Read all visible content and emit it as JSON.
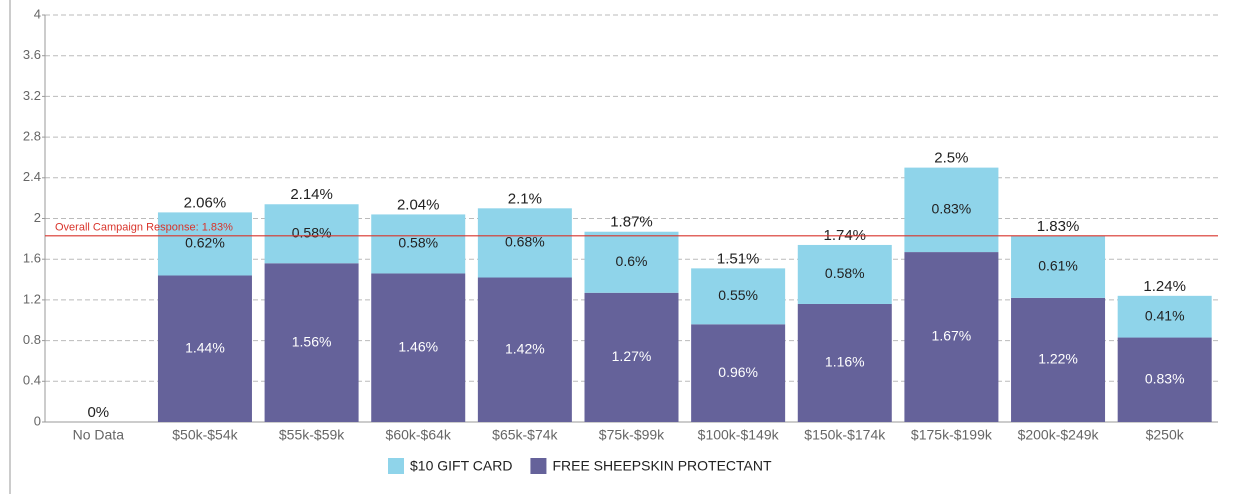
{
  "chart_data": {
    "type": "stacked_bar",
    "categories": [
      "No Data",
      "$50k-$54k",
      "$55k-$59k",
      "$60k-$64k",
      "$65k-$74k",
      "$75k-$99k",
      "$100k-$149k",
      "$150k-$174k",
      "$175k-$199k",
      "$200k-$249k",
      "$250k"
    ],
    "series": [
      {
        "name": "FREE SHEEPSKIN PROTECTANT",
        "color": "#65629a",
        "values": [
          0,
          1.44,
          1.56,
          1.46,
          1.42,
          1.27,
          0.96,
          1.16,
          1.67,
          1.22,
          0.83
        ],
        "value_labels": [
          null,
          "1.44%",
          "1.56%",
          "1.46%",
          "1.42%",
          "1.27%",
          "0.96%",
          "1.16%",
          "1.67%",
          "1.22%",
          "0.83%"
        ]
      },
      {
        "name": "$10 GIFT CARD",
        "color": "#8fd4ea",
        "values": [
          0,
          0.62,
          0.58,
          0.58,
          0.68,
          0.6,
          0.55,
          0.58,
          0.83,
          0.61,
          0.41
        ],
        "value_labels": [
          null,
          "0.62%",
          "0.58%",
          "0.58%",
          "0.68%",
          "0.6%",
          "0.55%",
          "0.58%",
          "0.83%",
          "0.61%",
          "0.41%"
        ]
      }
    ],
    "totals": [
      0,
      2.06,
      2.14,
      2.04,
      2.1,
      1.87,
      1.51,
      1.74,
      2.5,
      1.83,
      1.24
    ],
    "total_labels": [
      "0%",
      "2.06%",
      "2.14%",
      "2.04%",
      "2.1%",
      "1.87%",
      "1.51%",
      "1.74%",
      "2.5%",
      "1.83%",
      "1.24%"
    ],
    "reference_line": {
      "text": "Overall Campaign Response: 1.83%",
      "value": 1.83,
      "color": "#d9342b"
    },
    "ylim": [
      0,
      4
    ],
    "yticks": [
      0,
      0.4,
      0.8,
      1.2,
      1.6,
      2,
      2.4,
      2.8,
      3.2,
      3.6,
      4
    ],
    "grid": true
  }
}
